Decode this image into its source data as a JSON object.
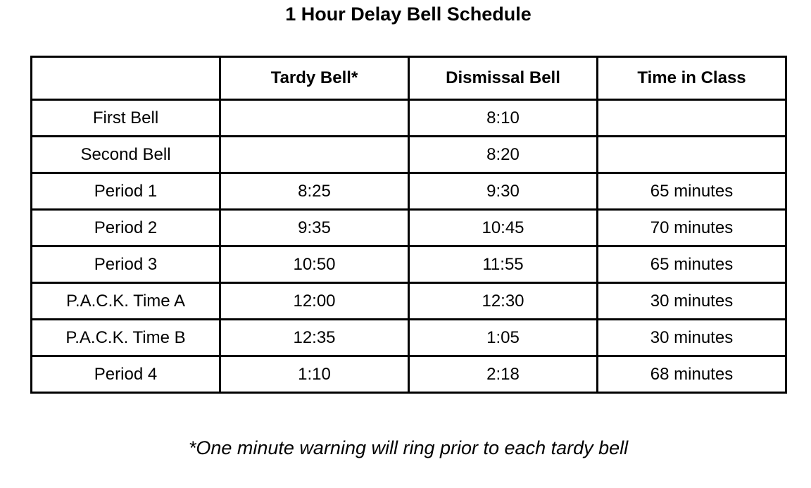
{
  "title": "1 Hour Delay Bell Schedule",
  "columns": [
    "",
    "Tardy Bell*",
    "Dismissal Bell",
    "Time in Class"
  ],
  "rows": [
    [
      "First Bell",
      "",
      "8:10",
      ""
    ],
    [
      "Second Bell",
      "",
      "8:20",
      ""
    ],
    [
      "Period 1",
      "8:25",
      "9:30",
      "65 minutes"
    ],
    [
      "Period 2",
      "9:35",
      "10:45",
      "70 minutes"
    ],
    [
      "Period 3",
      "10:50",
      "11:55",
      "65 minutes"
    ],
    [
      "P.A.C.K. Time A",
      "12:00",
      "12:30",
      "30 minutes"
    ],
    [
      "P.A.C.K. Time B",
      "12:35",
      "1:05",
      "30 minutes"
    ],
    [
      "Period 4",
      "1:10",
      "2:18",
      "68 minutes"
    ]
  ],
  "footnote": "*One minute warning will ring prior to each tardy bell"
}
